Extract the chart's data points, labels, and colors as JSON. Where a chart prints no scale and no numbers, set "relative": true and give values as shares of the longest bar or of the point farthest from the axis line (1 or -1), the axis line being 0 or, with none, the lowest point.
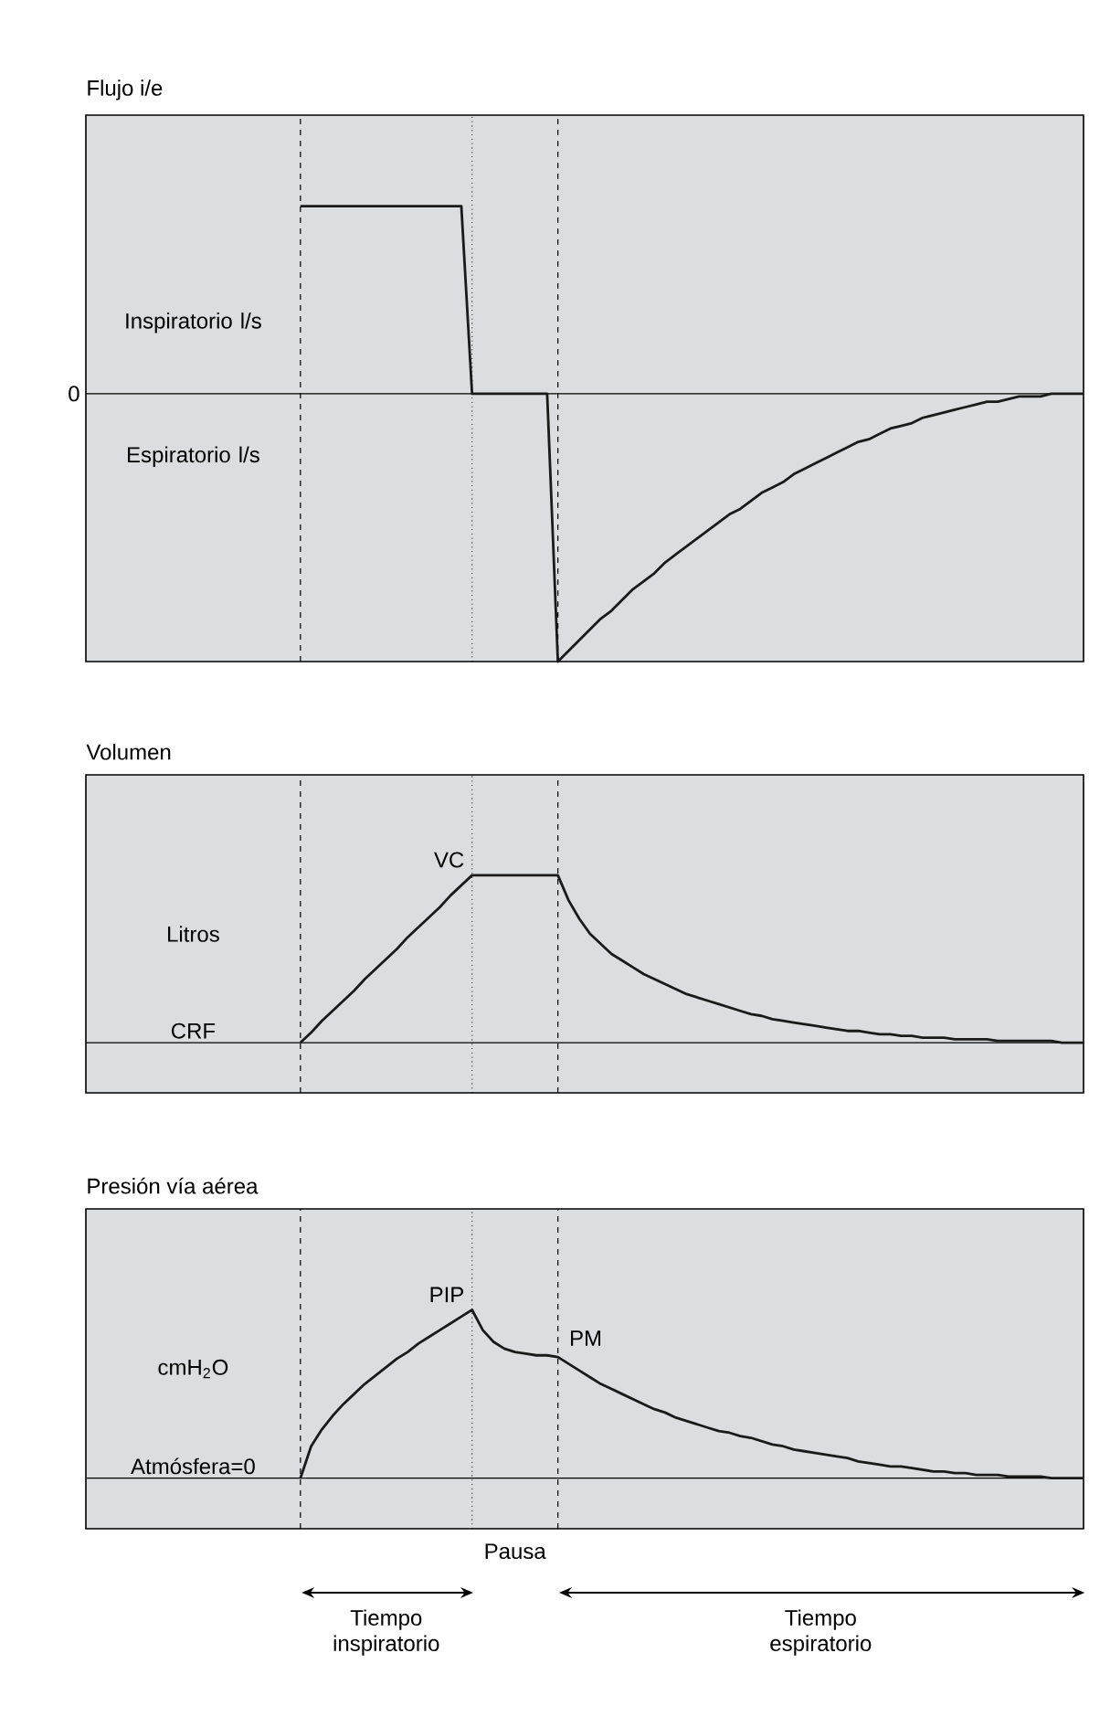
{
  "chart_data": [
    {
      "type": "line",
      "title": "Flujo i/e",
      "relative": true,
      "categories": [
        null,
        null,
        null,
        null,
        null,
        null,
        null,
        null,
        null,
        null,
        null,
        null,
        null,
        null,
        null,
        null,
        null,
        null,
        null,
        null,
        null,
        null,
        null,
        null,
        null,
        null,
        null,
        null,
        null,
        null,
        null,
        null,
        null,
        null,
        null,
        null,
        null,
        null,
        null,
        null,
        null,
        null,
        null,
        null,
        null,
        null,
        null,
        null,
        null,
        null,
        null,
        null,
        null,
        null,
        null,
        null,
        null,
        null,
        null,
        null,
        null,
        null,
        null,
        null,
        null,
        null,
        null,
        null,
        null,
        null,
        null,
        null,
        null,
        null,
        null,
        null,
        null,
        null,
        null,
        null,
        null,
        null,
        null,
        null,
        null,
        null,
        null,
        null,
        null,
        null,
        null,
        null,
        null,
        null
      ],
      "series": [
        {
          "color": "#1a1a1a",
          "values": [
            null,
            null,
            null,
            null,
            null,
            null,
            null,
            null,
            null,
            null,
            null,
            null,
            null,
            null,
            null,
            null,
            null,
            null,
            null,
            null,
            0.7,
            0.7,
            0.7,
            0.7,
            0.7,
            0.7,
            0.7,
            0.7,
            0.7,
            0.7,
            0.7,
            0.7,
            0.7,
            0.7,
            0.7,
            0.7,
            0,
            0,
            0,
            0,
            0,
            0,
            0,
            0,
            -1,
            -0.96,
            -0.92,
            -0.88,
            -0.84,
            -0.81,
            -0.77,
            -0.73,
            -0.7,
            -0.67,
            -0.63,
            -0.6,
            -0.57,
            -0.54,
            -0.51,
            -0.48,
            -0.45,
            -0.43,
            -0.4,
            -0.37,
            -0.35,
            -0.33,
            -0.3,
            -0.28,
            -0.26,
            -0.24,
            -0.22,
            -0.2,
            -0.18,
            -0.17,
            -0.15,
            -0.13,
            -0.12,
            -0.11,
            -0.09,
            -0.08,
            -0.07,
            -0.06,
            -0.05,
            -0.04,
            -0.03,
            -0.03,
            -0.02,
            -0.01,
            -0.01,
            -0.01,
            0,
            0,
            0,
            0
          ]
        }
      ],
      "ref_lines": [
        {
          "axis": "y",
          "value": 0,
          "label": "0"
        }
      ],
      "grid": "x",
      "annotations": [
        "Inspiratorio l/s",
        "Espiratorio l/s"
      ]
    },
    {
      "type": "line",
      "title": "Volumen",
      "ylabel": "Litros",
      "relative": true,
      "categories": [
        null,
        null,
        null,
        null,
        null,
        null,
        null,
        null,
        null,
        null,
        null,
        null,
        null,
        null,
        null,
        null,
        null,
        null,
        null,
        null,
        null,
        null,
        null,
        null,
        null,
        null,
        null,
        null,
        null,
        null,
        null,
        null,
        null,
        null,
        null,
        null,
        null,
        null,
        null,
        null,
        null,
        null,
        null,
        null,
        null,
        null,
        null,
        null,
        null,
        null,
        null,
        null,
        null,
        null,
        null,
        null,
        null,
        null,
        null,
        null,
        null,
        null,
        null,
        null,
        null,
        null,
        null,
        null,
        null,
        null,
        null,
        null,
        null,
        null,
        null,
        null,
        null,
        null,
        null,
        null,
        null,
        null,
        null,
        null,
        null,
        null,
        null,
        null,
        null,
        null,
        null,
        null,
        null,
        null
      ],
      "series": [
        {
          "color": "#1a1a1a",
          "values": [
            null,
            null,
            null,
            null,
            null,
            null,
            null,
            null,
            null,
            null,
            null,
            null,
            null,
            null,
            null,
            null,
            null,
            null,
            null,
            null,
            0,
            0.06,
            0.13,
            0.19,
            0.25,
            0.31,
            0.38,
            0.44,
            0.5,
            0.56,
            0.63,
            0.69,
            0.75,
            0.81,
            0.88,
            0.94,
            1,
            1,
            1,
            1,
            1,
            1,
            1,
            1,
            1,
            0.85,
            0.74,
            0.65,
            0.59,
            0.53,
            0.49,
            0.45,
            0.41,
            0.38,
            0.35,
            0.32,
            0.29,
            0.27,
            0.25,
            0.23,
            0.21,
            0.19,
            0.17,
            0.16,
            0.14,
            0.13,
            0.12,
            0.11,
            0.1,
            0.09,
            0.08,
            0.07,
            0.07,
            0.06,
            0.05,
            0.05,
            0.04,
            0.04,
            0.03,
            0.03,
            0.03,
            0.02,
            0.02,
            0.02,
            0.02,
            0.01,
            0.01,
            0.01,
            0.01,
            0.01,
            0.01,
            0,
            0,
            0
          ]
        }
      ],
      "ref_lines": [
        {
          "axis": "y",
          "value": 0,
          "label": "CRF"
        }
      ],
      "grid": "x",
      "annotations": [
        "VC"
      ]
    },
    {
      "type": "line",
      "title": "Presión vía aérea",
      "ylabel": "cmH$_{2}$O",
      "relative": true,
      "categories": [
        null,
        null,
        null,
        null,
        null,
        null,
        null,
        null,
        null,
        null,
        null,
        null,
        null,
        null,
        null,
        null,
        null,
        null,
        null,
        null,
        null,
        null,
        null,
        null,
        null,
        null,
        null,
        null,
        null,
        null,
        null,
        null,
        null,
        null,
        null,
        null,
        null,
        null,
        null,
        null,
        null,
        null,
        null,
        null,
        null,
        null,
        null,
        null,
        null,
        null,
        null,
        null,
        null,
        null,
        null,
        null,
        null,
        null,
        null,
        null,
        null,
        null,
        null,
        null,
        null,
        null,
        null,
        null,
        null,
        null,
        null,
        null,
        null,
        null,
        null,
        null,
        null,
        null,
        null,
        null,
        null,
        null,
        null,
        null,
        null,
        null,
        null,
        null,
        null,
        null,
        null,
        null,
        null,
        null
      ],
      "series": [
        {
          "color": "#1a1a1a",
          "values": [
            null,
            null,
            null,
            null,
            null,
            null,
            null,
            null,
            null,
            null,
            null,
            null,
            null,
            null,
            null,
            null,
            null,
            null,
            null,
            null,
            0,
            0.19,
            0.29,
            0.37,
            0.44,
            0.5,
            0.56,
            0.61,
            0.66,
            0.71,
            0.75,
            0.8,
            0.84,
            0.88,
            0.92,
            0.96,
            1,
            0.88,
            0.81,
            0.77,
            0.75,
            0.74,
            0.73,
            0.73,
            0.72,
            0.68,
            0.64,
            0.6,
            0.56,
            0.53,
            0.5,
            0.47,
            0.44,
            0.41,
            0.39,
            0.36,
            0.34,
            0.32,
            0.3,
            0.28,
            0.27,
            0.25,
            0.24,
            0.22,
            0.2,
            0.19,
            0.17,
            0.16,
            0.15,
            0.14,
            0.13,
            0.12,
            0.1,
            0.09,
            0.08,
            0.07,
            0.07,
            0.06,
            0.05,
            0.04,
            0.04,
            0.03,
            0.03,
            0.02,
            0.02,
            0.02,
            0.01,
            0.01,
            0.01,
            0.01,
            0,
            0,
            0,
            0
          ]
        }
      ],
      "ref_lines": [
        {
          "axis": "y",
          "value": 0,
          "label": "Atmósfera=0"
        }
      ],
      "grid": "x",
      "annotations": [
        "PIP",
        "PM",
        "Pausa",
        "Tiempo inspiratorio",
        "Tiempo espiratorio"
      ]
    }
  ]
}
